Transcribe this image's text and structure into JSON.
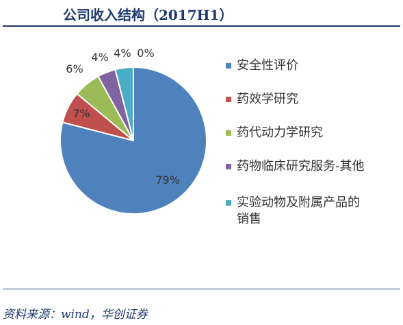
{
  "title": "公司收入结构（2017H1）",
  "source": "资料来源：wind，华创证券",
  "chart_data": {
    "type": "pie",
    "title": "公司收入结构（2017H1）",
    "slices": [
      {
        "name": "安全性评价",
        "value": 79,
        "label": "79%",
        "color": "#4f81bd"
      },
      {
        "name": "药效学研究",
        "value": 7,
        "label": "7%",
        "color": "#c0504d"
      },
      {
        "name": "药代动力学研究",
        "value": 6,
        "label": "6%",
        "color": "#9bbb59"
      },
      {
        "name": "药物临床研究服务-其他",
        "value": 4,
        "label": "4%",
        "color": "#8064a2"
      },
      {
        "name": "实验动物及附属产品的销售",
        "value": 4,
        "label": "4%",
        "color": "#4bacc6"
      },
      {
        "name": "",
        "value": 0,
        "label": "0%",
        "color": "#f79646"
      }
    ],
    "legend_position": "right"
  },
  "legend": [
    {
      "label": "安全性评价",
      "color": "#4f81bd"
    },
    {
      "label": "药效学研究",
      "color": "#c0504d"
    },
    {
      "label": "药代动力学研究",
      "color": "#9bbb59"
    },
    {
      "label": "药物临床研究服务-其他",
      "color": "#8064a2"
    },
    {
      "label": "实验动物及附属产品的销售",
      "color": "#4bacc6"
    }
  ]
}
